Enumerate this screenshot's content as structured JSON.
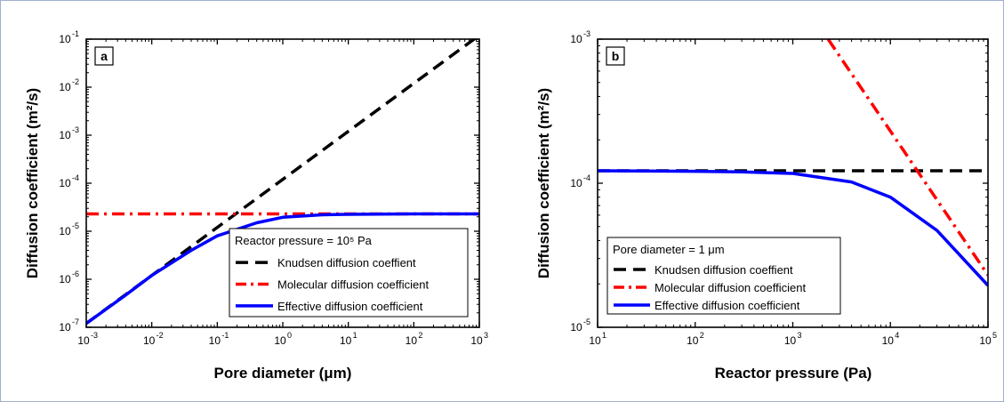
{
  "chart_data": [
    {
      "type": "line",
      "panel_label": "a",
      "xlabel": "Pore diameter (μm)",
      "ylabel": "Diffusion coefficient (m²/s)",
      "xscale": "log",
      "yscale": "log",
      "xlim": [
        0.001,
        1000
      ],
      "ylim": [
        1e-07,
        0.1
      ],
      "x_ticks": [
        {
          "b": "10",
          "e": "-3",
          "v": 0.001
        },
        {
          "b": "10",
          "e": "-2",
          "v": 0.01
        },
        {
          "b": "10",
          "e": "-1",
          "v": 0.1
        },
        {
          "b": "10",
          "e": "0",
          "v": 1
        },
        {
          "b": "10",
          "e": "1",
          "v": 10
        },
        {
          "b": "10",
          "e": "2",
          "v": 100
        },
        {
          "b": "10",
          "e": "3",
          "v": 1000
        }
      ],
      "y_ticks": [
        {
          "b": "10",
          "e": "-7",
          "v": 1e-07
        },
        {
          "b": "10",
          "e": "-6",
          "v": 1e-06
        },
        {
          "b": "10",
          "e": "-5",
          "v": 1e-05
        },
        {
          "b": "10",
          "e": "-4",
          "v": 0.0001
        },
        {
          "b": "10",
          "e": "-3",
          "v": 0.001
        },
        {
          "b": "10",
          "e": "-2",
          "v": 0.01
        },
        {
          "b": "10",
          "e": "-1",
          "v": 0.1
        }
      ],
      "legend_position": "bottom-right",
      "legend_title": "Reactor pressure = 10⁵ Pa",
      "series": [
        {
          "name": "Knudsen diffusion coeffient",
          "style": "dashed",
          "color": "#000000",
          "x": [
            0.001,
            1000
          ],
          "y": [
            1.2e-07,
            0.12
          ]
        },
        {
          "name": "Molecular diffusion coefficient",
          "style": "dashdot",
          "color": "#ff0000",
          "x": [
            0.001,
            1000
          ],
          "y": [
            2.3e-05,
            2.3e-05
          ]
        },
        {
          "name": "Effective diffusion coefficient",
          "style": "solid",
          "color": "#0000ff",
          "x": [
            0.001,
            0.004,
            0.01,
            0.04,
            0.1,
            0.4,
            1,
            4,
            10,
            100,
            1000
          ],
          "y": [
            1.2e-07,
            4.7e-07,
            1.2e-06,
            4e-06,
            8e-06,
            1.5e-05,
            1.95e-05,
            2.2e-05,
            2.25e-05,
            2.3e-05,
            2.3e-05
          ]
        }
      ]
    },
    {
      "type": "line",
      "panel_label": "b",
      "xlabel": "Reactor pressure (Pa)",
      "ylabel": "Diffusion coefficient (m²/s)",
      "xscale": "log",
      "yscale": "log",
      "xlim": [
        10,
        100000
      ],
      "ylim": [
        1e-05,
        0.001
      ],
      "x_ticks": [
        {
          "b": "10",
          "e": "1",
          "v": 10
        },
        {
          "b": "10",
          "e": "2",
          "v": 100
        },
        {
          "b": "10",
          "e": "3",
          "v": 1000
        },
        {
          "b": "10",
          "e": "4",
          "v": 10000
        },
        {
          "b": "10",
          "e": "5",
          "v": 100000
        }
      ],
      "y_ticks": [
        {
          "b": "10",
          "e": "-5",
          "v": 1e-05
        },
        {
          "b": "10",
          "e": "-4",
          "v": 0.0001
        },
        {
          "b": "10",
          "e": "-3",
          "v": 0.001
        }
      ],
      "legend_position": "bottom-left",
      "legend_title": "Pore diameter = 1 μm",
      "series": [
        {
          "name": "Knudsen diffusion coeffient",
          "style": "dashed",
          "color": "#000000",
          "x": [
            10,
            100000
          ],
          "y": [
            0.000122,
            0.000122
          ]
        },
        {
          "name": "Molecular diffusion coefficient",
          "style": "dashdot",
          "color": "#ff0000",
          "x": [
            2300,
            100000
          ],
          "y": [
            0.001,
            2.3e-05
          ]
        },
        {
          "name": "Effective diffusion coefficient",
          "style": "solid",
          "color": "#0000ff",
          "x": [
            10,
            100,
            300,
            1000,
            4000,
            10000,
            30000,
            100000
          ],
          "y": [
            0.000122,
            0.000121,
            0.00012,
            0.000117,
            0.000102,
            8e-05,
            4.7e-05,
            1.95e-05
          ]
        }
      ]
    }
  ]
}
